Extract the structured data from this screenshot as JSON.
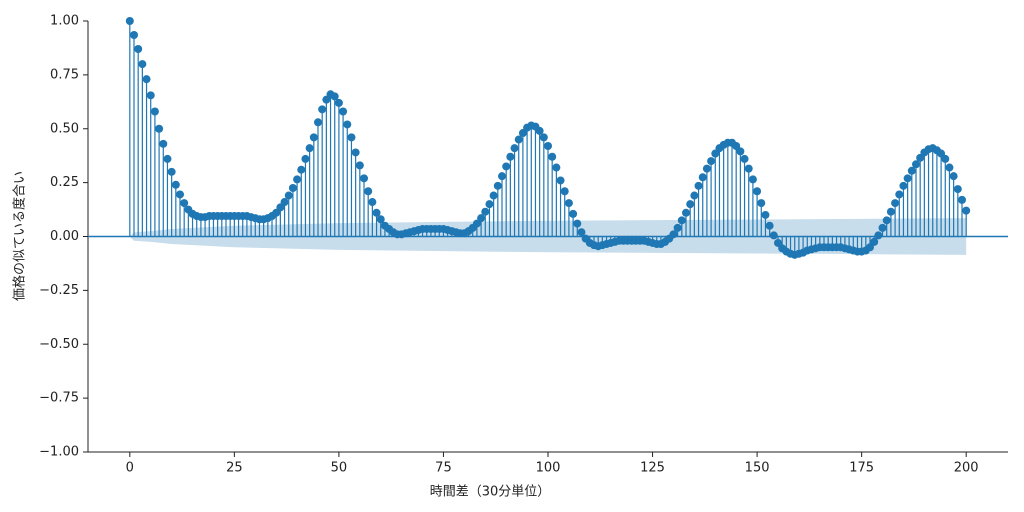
{
  "chart_data": {
    "type": "stem",
    "xlabel": "時間差（30分単位）",
    "ylabel": "価格の似ている度合い",
    "color": "#1f77b4",
    "xlim": [
      -10,
      210
    ],
    "ylim": [
      -1,
      1
    ],
    "xticks": [
      0,
      25,
      50,
      75,
      100,
      125,
      150,
      175,
      200
    ],
    "yticks": [
      {
        "value": -1,
        "label": "−1.00"
      },
      {
        "value": -0.75,
        "label": "−0.75"
      },
      {
        "value": -0.5,
        "label": "−0.50"
      },
      {
        "value": -0.25,
        "label": "−0.25"
      },
      {
        "value": 0,
        "label": "0.00"
      },
      {
        "value": 0.25,
        "label": "0.25"
      },
      {
        "value": 0.5,
        "label": "0.50"
      },
      {
        "value": 0.75,
        "label": "0.75"
      },
      {
        "value": 1,
        "label": "1.00"
      }
    ],
    "x": [
      0,
      1,
      2,
      3,
      4,
      5,
      6,
      7,
      8,
      9,
      10,
      11,
      12,
      13,
      14,
      15,
      16,
      17,
      18,
      19,
      20,
      21,
      22,
      23,
      24,
      25,
      26,
      27,
      28,
      29,
      30,
      31,
      32,
      33,
      34,
      35,
      36,
      37,
      38,
      39,
      40,
      41,
      42,
      43,
      44,
      45,
      46,
      47,
      48,
      49,
      50,
      51,
      52,
      53,
      54,
      55,
      56,
      57,
      58,
      59,
      60,
      61,
      62,
      63,
      64,
      65,
      66,
      67,
      68,
      69,
      70,
      71,
      72,
      73,
      74,
      75,
      76,
      77,
      78,
      79,
      80,
      81,
      82,
      83,
      84,
      85,
      86,
      87,
      88,
      89,
      90,
      91,
      92,
      93,
      94,
      95,
      96,
      97,
      98,
      99,
      100,
      101,
      102,
      103,
      104,
      105,
      106,
      107,
      108,
      109,
      110,
      111,
      112,
      113,
      114,
      115,
      116,
      117,
      118,
      119,
      120,
      121,
      122,
      123,
      124,
      125,
      126,
      127,
      128,
      129,
      130,
      131,
      132,
      133,
      134,
      135,
      136,
      137,
      138,
      139,
      140,
      141,
      142,
      143,
      144,
      145,
      146,
      147,
      148,
      149,
      150,
      151,
      152,
      153,
      154,
      155,
      156,
      157,
      158,
      159,
      160,
      161,
      162,
      163,
      164,
      165,
      166,
      167,
      168,
      169,
      170,
      171,
      172,
      173,
      174,
      175,
      176,
      177,
      178,
      179,
      180,
      181,
      182,
      183,
      184,
      185,
      186,
      187,
      188,
      189,
      190,
      191,
      192,
      193,
      194,
      195,
      196,
      197,
      198,
      199,
      200
    ],
    "values": [
      1.0,
      0.935,
      0.87,
      0.8,
      0.73,
      0.655,
      0.58,
      0.5,
      0.43,
      0.36,
      0.3,
      0.24,
      0.195,
      0.155,
      0.125,
      0.105,
      0.095,
      0.09,
      0.09,
      0.095,
      0.095,
      0.095,
      0.095,
      0.095,
      0.095,
      0.095,
      0.095,
      0.095,
      0.095,
      0.09,
      0.085,
      0.08,
      0.08,
      0.085,
      0.095,
      0.11,
      0.135,
      0.16,
      0.19,
      0.225,
      0.265,
      0.31,
      0.36,
      0.41,
      0.46,
      0.53,
      0.59,
      0.635,
      0.66,
      0.65,
      0.62,
      0.58,
      0.52,
      0.46,
      0.39,
      0.33,
      0.27,
      0.21,
      0.16,
      0.11,
      0.08,
      0.05,
      0.035,
      0.02,
      0.01,
      0.01,
      0.015,
      0.02,
      0.025,
      0.03,
      0.035,
      0.035,
      0.035,
      0.035,
      0.035,
      0.035,
      0.03,
      0.025,
      0.02,
      0.015,
      0.015,
      0.025,
      0.04,
      0.06,
      0.085,
      0.115,
      0.15,
      0.19,
      0.235,
      0.28,
      0.325,
      0.37,
      0.41,
      0.45,
      0.48,
      0.505,
      0.515,
      0.51,
      0.49,
      0.46,
      0.42,
      0.37,
      0.32,
      0.26,
      0.21,
      0.155,
      0.105,
      0.06,
      0.02,
      -0.01,
      -0.03,
      -0.04,
      -0.045,
      -0.04,
      -0.035,
      -0.03,
      -0.025,
      -0.02,
      -0.02,
      -0.02,
      -0.02,
      -0.02,
      -0.02,
      -0.02,
      -0.025,
      -0.03,
      -0.035,
      -0.035,
      -0.025,
      -0.01,
      0.01,
      0.04,
      0.075,
      0.11,
      0.15,
      0.19,
      0.235,
      0.275,
      0.315,
      0.35,
      0.385,
      0.41,
      0.425,
      0.435,
      0.435,
      0.42,
      0.395,
      0.36,
      0.315,
      0.265,
      0.21,
      0.155,
      0.1,
      0.05,
      0.005,
      -0.03,
      -0.055,
      -0.07,
      -0.08,
      -0.085,
      -0.08,
      -0.075,
      -0.065,
      -0.06,
      -0.055,
      -0.05,
      -0.05,
      -0.05,
      -0.05,
      -0.05,
      -0.05,
      -0.055,
      -0.06,
      -0.065,
      -0.07,
      -0.07,
      -0.065,
      -0.05,
      -0.025,
      0.005,
      0.04,
      0.075,
      0.115,
      0.155,
      0.195,
      0.235,
      0.27,
      0.305,
      0.335,
      0.365,
      0.39,
      0.405,
      0.41,
      0.4,
      0.385,
      0.36,
      0.32,
      0.28,
      0.22,
      0.17,
      0.12
    ],
    "confidence_band": {
      "x": [
        0,
        1,
        5,
        10,
        25,
        50,
        75,
        100,
        125,
        150,
        175,
        200
      ],
      "upper": [
        0,
        0.02,
        0.025,
        0.035,
        0.05,
        0.062,
        0.068,
        0.073,
        0.076,
        0.079,
        0.082,
        0.085
      ],
      "lower": [
        0,
        -0.02,
        -0.025,
        -0.035,
        -0.05,
        -0.062,
        -0.068,
        -0.073,
        -0.076,
        -0.079,
        -0.082,
        -0.085
      ]
    }
  }
}
